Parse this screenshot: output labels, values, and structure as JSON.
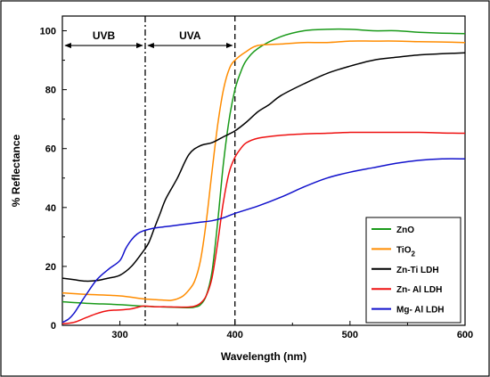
{
  "chart_data": {
    "type": "line",
    "xlabel": "Wavelength (nm)",
    "ylabel": "% Reflectance",
    "xlim": [
      250,
      600
    ],
    "ylim": [
      0,
      105
    ],
    "xticks": [
      300,
      400,
      500,
      600
    ],
    "yticks": [
      0,
      20,
      40,
      60,
      80,
      100
    ],
    "grid": false,
    "legend_position": "bottom-right",
    "vlines": [
      {
        "x": 322,
        "style": "dash-dot"
      },
      {
        "x": 400,
        "style": "dashed"
      }
    ],
    "regions": [
      {
        "label": "UVB",
        "x_start": 250,
        "x_end": 322,
        "y": 95
      },
      {
        "label": "UVA",
        "x_start": 322,
        "x_end": 400,
        "y": 95
      }
    ],
    "series": [
      {
        "name": "ZnO",
        "color": "#1a9a1a",
        "x": [
          250,
          270,
          300,
          320,
          340,
          360,
          365,
          370,
          375,
          380,
          385,
          390,
          395,
          400,
          405,
          410,
          420,
          440,
          460,
          480,
          500,
          520,
          540,
          560,
          580,
          600
        ],
        "y": [
          8,
          7.5,
          7,
          6.5,
          6.2,
          6,
          6.2,
          7,
          10,
          18,
          35,
          55,
          70,
          80,
          86,
          90,
          94,
          98,
          100,
          100.5,
          100.5,
          100,
          100,
          99.5,
          99.2,
          99
        ]
      },
      {
        "name": "TiO2",
        "legend_main": "TiO",
        "legend_sub": "2",
        "color": "#ff8c00",
        "x": [
          250,
          270,
          300,
          320,
          340,
          345,
          350,
          355,
          360,
          365,
          370,
          375,
          380,
          385,
          390,
          395,
          400,
          410,
          420,
          440,
          460,
          480,
          500,
          520,
          540,
          560,
          580,
          600
        ],
        "y": [
          11,
          10.5,
          10,
          9,
          8.5,
          8.5,
          9,
          10,
          12,
          15,
          22,
          35,
          52,
          68,
          80,
          87,
          90,
          93,
          95,
          95.5,
          96,
          96,
          96.5,
          96.5,
          96.5,
          96.3,
          96.2,
          96
        ]
      },
      {
        "name": "Zn-Ti LDH",
        "color": "#000000",
        "x": [
          250,
          260,
          270,
          280,
          290,
          300,
          310,
          320,
          325,
          330,
          335,
          340,
          350,
          360,
          370,
          380,
          390,
          400,
          410,
          420,
          430,
          440,
          460,
          480,
          500,
          520,
          540,
          560,
          580,
          600
        ],
        "y": [
          16,
          15.5,
          15,
          15.2,
          16,
          17,
          20,
          25,
          28,
          33,
          38,
          43,
          50,
          58,
          61,
          62,
          64,
          66,
          69,
          72.5,
          75,
          78,
          82,
          85.5,
          88,
          90,
          91,
          91.8,
          92.2,
          92.5
        ]
      },
      {
        "name": "Zn- Al LDH",
        "color": "#ee1111",
        "x": [
          250,
          260,
          270,
          280,
          290,
          300,
          310,
          320,
          330,
          340,
          350,
          360,
          365,
          370,
          375,
          380,
          385,
          390,
          395,
          400,
          405,
          410,
          420,
          440,
          460,
          480,
          500,
          520,
          540,
          560,
          580,
          600
        ],
        "y": [
          0.5,
          1,
          2.5,
          4,
          5,
          5.2,
          5.6,
          6.5,
          6.3,
          6.3,
          6.2,
          6.2,
          6.5,
          7.5,
          10,
          16,
          28,
          42,
          52,
          57,
          60,
          62,
          63.5,
          64.5,
          65,
          65.2,
          65.5,
          65.5,
          65.5,
          65.5,
          65.3,
          65.2
        ]
      },
      {
        "name": "Mg- Al LDH",
        "color": "#1111cc",
        "x": [
          250,
          255,
          260,
          265,
          270,
          280,
          290,
          300,
          305,
          310,
          315,
          320,
          330,
          340,
          350,
          360,
          370,
          380,
          390,
          400,
          420,
          440,
          460,
          480,
          500,
          520,
          540,
          560,
          580,
          600
        ],
        "y": [
          1,
          2,
          4,
          7,
          10,
          15.5,
          19,
          22,
          26,
          29,
          31,
          32,
          33,
          33.5,
          34,
          34.5,
          35,
          35.5,
          36.5,
          38,
          40.5,
          43.5,
          47,
          50,
          52,
          53.5,
          55,
          56,
          56.5,
          56.5
        ]
      }
    ]
  }
}
